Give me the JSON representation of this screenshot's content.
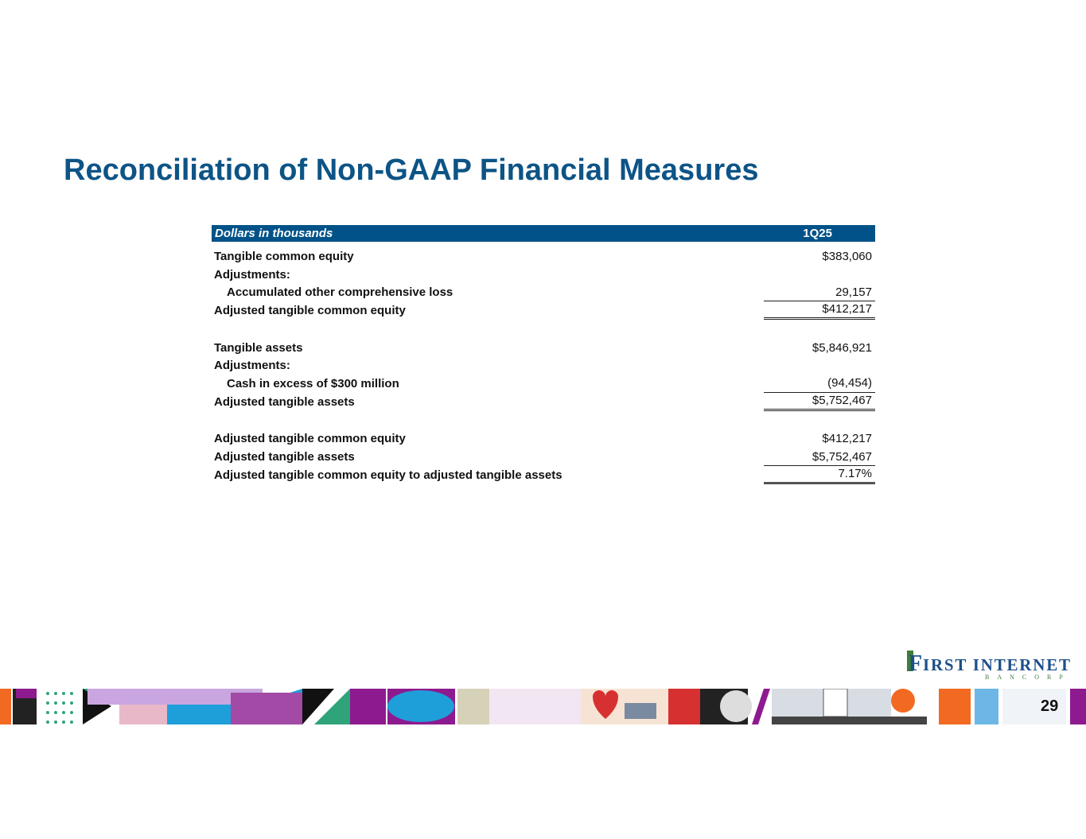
{
  "title": "Reconciliation of Non-GAAP Financial Measures",
  "table": {
    "header": {
      "label": "Dollars in thousands",
      "period": "1Q25"
    },
    "rows": [
      {
        "label": "Tangible common equity",
        "value": "$383,060"
      },
      {
        "label": "Adjustments:",
        "value": ""
      },
      {
        "label": "Accumulated other comprehensive loss",
        "value": "29,157"
      },
      {
        "label": "Adjusted tangible common equity",
        "value": "$412,217"
      },
      {
        "label": "Tangible assets",
        "value": "$5,846,921"
      },
      {
        "label": "Adjustments:",
        "value": ""
      },
      {
        "label": "Cash in excess of $300 million",
        "value": "(94,454)"
      },
      {
        "label": "Adjusted tangible assets",
        "value": "$5,752,467"
      },
      {
        "label": "Adjusted tangible common equity",
        "value": "$412,217"
      },
      {
        "label": "Adjusted tangible assets",
        "value": "$5,752,467"
      },
      {
        "label": "Adjusted tangible common equity to adjusted tangible assets",
        "value": "7.17%"
      }
    ]
  },
  "logo": {
    "name": "FIRST INTERNET",
    "sub": "BANCORP"
  },
  "page_number": "29",
  "colors": {
    "title": "#0d5486",
    "header_bg": "#005288",
    "logo_blue": "#1c4f8a",
    "logo_green": "#3f7d3a"
  }
}
